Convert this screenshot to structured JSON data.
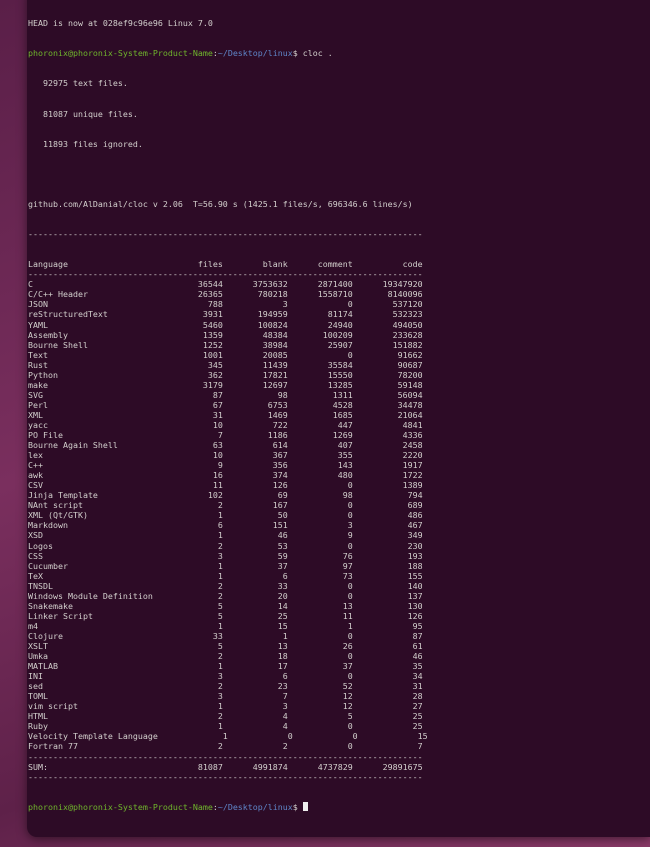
{
  "terminal": {
    "head_line": "HEAD is now at 028ef9c96e96 Linux 7.0",
    "prompt_user": "phoronix@phoronix-System-Product-Name",
    "prompt_path": "~/Desktop/linux",
    "command": "cloc .",
    "summary": [
      "   92975 text files.",
      "   81087 unique files.",
      "   11893 files ignored."
    ],
    "version_line": "github.com/AlDanial/cloc v 2.06  T=56.90 s (1425.1 files/s, 696346.6 lines/s)",
    "columns": [
      "Language",
      "files",
      "blank",
      "comment",
      "code"
    ],
    "rows": [
      [
        "C",
        "36544",
        "3753632",
        "2871400",
        "19347920"
      ],
      [
        "C/C++ Header",
        "26365",
        "780218",
        "1558710",
        "8140096"
      ],
      [
        "JSON",
        "788",
        "3",
        "0",
        "537120"
      ],
      [
        "reStructuredText",
        "3931",
        "194959",
        "81174",
        "532323"
      ],
      [
        "YAML",
        "5460",
        "100824",
        "24940",
        "494050"
      ],
      [
        "Assembly",
        "1359",
        "48384",
        "100209",
        "233628"
      ],
      [
        "Bourne Shell",
        "1252",
        "38984",
        "25907",
        "151882"
      ],
      [
        "Text",
        "1001",
        "20085",
        "0",
        "91662"
      ],
      [
        "Rust",
        "345",
        "11439",
        "35584",
        "90687"
      ],
      [
        "Python",
        "362",
        "17821",
        "15550",
        "78200"
      ],
      [
        "make",
        "3179",
        "12697",
        "13285",
        "59148"
      ],
      [
        "SVG",
        "87",
        "98",
        "1311",
        "56094"
      ],
      [
        "Perl",
        "67",
        "6753",
        "4528",
        "34478"
      ],
      [
        "XML",
        "31",
        "1469",
        "1685",
        "21064"
      ],
      [
        "yacc",
        "10",
        "722",
        "447",
        "4841"
      ],
      [
        "PO File",
        "7",
        "1186",
        "1269",
        "4336"
      ],
      [
        "Bourne Again Shell",
        "63",
        "614",
        "407",
        "2458"
      ],
      [
        "lex",
        "10",
        "367",
        "355",
        "2220"
      ],
      [
        "C++",
        "9",
        "356",
        "143",
        "1917"
      ],
      [
        "awk",
        "16",
        "374",
        "480",
        "1722"
      ],
      [
        "CSV",
        "11",
        "126",
        "0",
        "1389"
      ],
      [
        "Jinja Template",
        "102",
        "69",
        "98",
        "794"
      ],
      [
        "NAnt script",
        "2",
        "167",
        "0",
        "689"
      ],
      [
        "XML (Qt/GTK)",
        "1",
        "50",
        "0",
        "486"
      ],
      [
        "Markdown",
        "6",
        "151",
        "3",
        "467"
      ],
      [
        "XSD",
        "1",
        "46",
        "9",
        "349"
      ],
      [
        "Logos",
        "2",
        "53",
        "0",
        "230"
      ],
      [
        "CSS",
        "3",
        "59",
        "76",
        "193"
      ],
      [
        "Cucumber",
        "1",
        "37",
        "97",
        "188"
      ],
      [
        "TeX",
        "1",
        "6",
        "73",
        "155"
      ],
      [
        "TNSDL",
        "2",
        "33",
        "0",
        "140"
      ],
      [
        "Windows Module Definition",
        "2",
        "20",
        "0",
        "137"
      ],
      [
        "Snakemake",
        "5",
        "14",
        "13",
        "130"
      ],
      [
        "Linker Script",
        "5",
        "25",
        "11",
        "126"
      ],
      [
        "m4",
        "1",
        "15",
        "1",
        "95"
      ],
      [
        "Clojure",
        "33",
        "1",
        "0",
        "87"
      ],
      [
        "XSLT",
        "5",
        "13",
        "26",
        "61"
      ],
      [
        "Umka",
        "2",
        "18",
        "0",
        "46"
      ],
      [
        "MATLAB",
        "1",
        "17",
        "37",
        "35"
      ],
      [
        "INI",
        "3",
        "6",
        "0",
        "34"
      ],
      [
        "sed",
        "2",
        "23",
        "52",
        "31"
      ],
      [
        "TOML",
        "3",
        "7",
        "12",
        "28"
      ],
      [
        "vim script",
        "1",
        "3",
        "12",
        "27"
      ],
      [
        "HTML",
        "2",
        "4",
        "5",
        "25"
      ],
      [
        "Ruby",
        "1",
        "4",
        "0",
        "25"
      ],
      [
        "Velocity Template Language",
        "1",
        "0",
        "0",
        "15"
      ],
      [
        "Fortran 77",
        "2",
        "2",
        "0",
        "7"
      ]
    ],
    "sum": [
      "SUM:",
      "81087",
      "4991874",
      "4737829",
      "29891675"
    ],
    "separator": "-------------------------------------------------------------------------------"
  }
}
